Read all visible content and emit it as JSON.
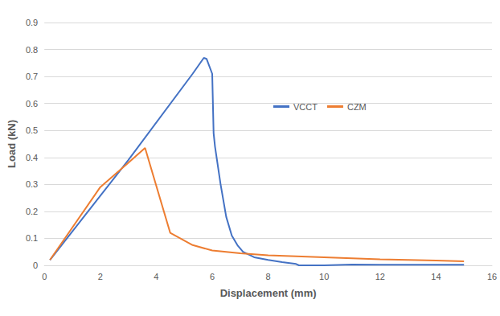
{
  "chart_data": {
    "type": "line",
    "x_label": "Displacement (mm)",
    "y_label": "Load (kN)",
    "xlim": [
      0,
      16
    ],
    "xticks": [
      0,
      2,
      4,
      6,
      8,
      10,
      12,
      14,
      16
    ],
    "ylim": [
      0,
      0.9
    ],
    "yticks": [
      0,
      0.1,
      0.2,
      0.3,
      0.4,
      0.5,
      0.6,
      0.7,
      0.8,
      0.9
    ],
    "grid": true,
    "legend": "center",
    "series": [
      {
        "name": "VCCT",
        "color": "#4472c4",
        "line_style": "solid",
        "marker": "none",
        "x": [
          0.2,
          3,
          5.3,
          5.7,
          5.8,
          6.0,
          6.05,
          6.1,
          6.3,
          6.5,
          6.7,
          6.9,
          7.1,
          7.5,
          8,
          8.5,
          9,
          9.1,
          10,
          11,
          12,
          13,
          14,
          15
        ],
        "values": [
          0.02,
          0.39,
          0.71,
          0.769,
          0.765,
          0.71,
          0.49,
          0.44,
          0.3,
          0.18,
          0.11,
          0.075,
          0.05,
          0.03,
          0.02,
          0.012,
          0.005,
          0,
          0,
          0.003,
          0.002,
          0.002,
          0.002,
          0.002
        ]
      },
      {
        "name": "CZM",
        "color": "#ed7d31",
        "line_style": "solid",
        "marker": "none",
        "x": [
          0.2,
          2,
          3,
          3.6,
          4.5,
          5.3,
          6,
          7,
          8,
          10,
          12,
          13,
          14,
          15
        ],
        "values": [
          0.02,
          0.29,
          0.38,
          0.435,
          0.12,
          0.075,
          0.055,
          0.045,
          0.037,
          0.03,
          0.022,
          0.02,
          0.018,
          0.015
        ]
      }
    ]
  }
}
